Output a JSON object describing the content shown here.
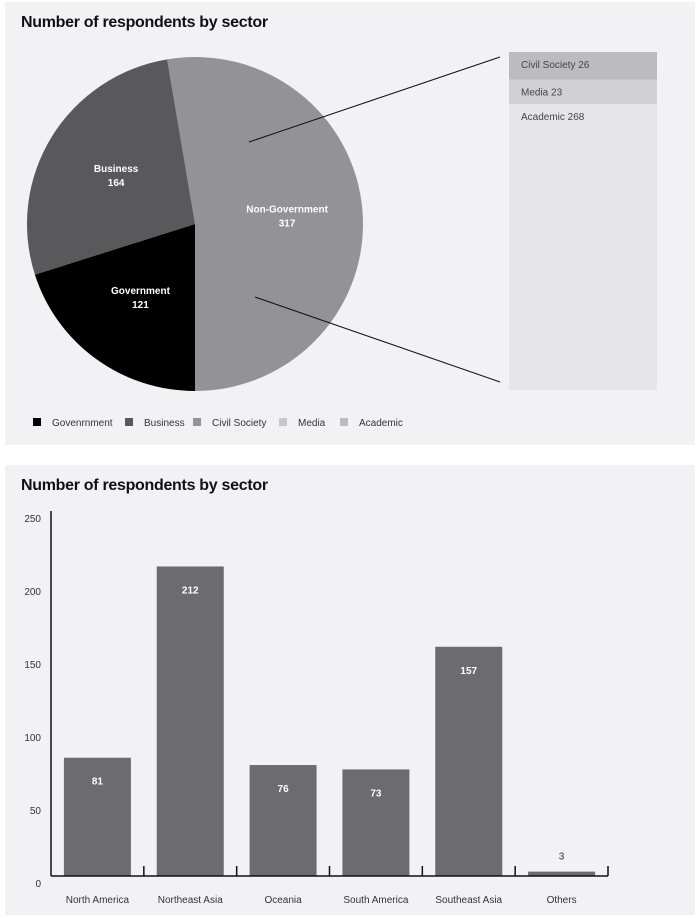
{
  "chart_data": [
    {
      "type": "pie",
      "title": "Number of respondents by sector",
      "slices": [
        {
          "label": "Non-Government",
          "value": 317,
          "color": "#939396"
        },
        {
          "label": "Government",
          "value": 121,
          "color": "#000000"
        },
        {
          "label": "Business",
          "value": 164,
          "color": "#59595c"
        }
      ],
      "breakdown": {
        "of": "Non-Government",
        "items": [
          {
            "label": "Civil Society 26",
            "value": 26,
            "color": "#bcbcc0"
          },
          {
            "label": "Media 23",
            "value": 23,
            "color": "#d1d1d4"
          },
          {
            "label": "Academic 268",
            "value": 268,
            "color": "#e6e6e9"
          }
        ]
      },
      "legend": {
        "placement": "bottom-left",
        "items": [
          {
            "label": "Govenrnment",
            "color": "#000000"
          },
          {
            "label": "Business",
            "color": "#59595c"
          },
          {
            "label": "Civil Society",
            "color": "#939396"
          },
          {
            "label": "Media",
            "color": "#c8c8cb"
          },
          {
            "label": "Academic",
            "color": "#bcbcc0"
          }
        ]
      }
    },
    {
      "type": "bar",
      "title": "Number of respondents by sector",
      "categories": [
        "North America",
        "Northeast Asia",
        "Oceania",
        "South America",
        "Southeast Asia",
        "Others"
      ],
      "values": [
        81,
        212,
        76,
        73,
        157,
        3
      ],
      "ylim": [
        0,
        250
      ],
      "yticks": [
        0,
        50,
        100,
        150,
        200,
        250
      ],
      "bar_color": "#6c6b6f",
      "grid": false
    }
  ]
}
